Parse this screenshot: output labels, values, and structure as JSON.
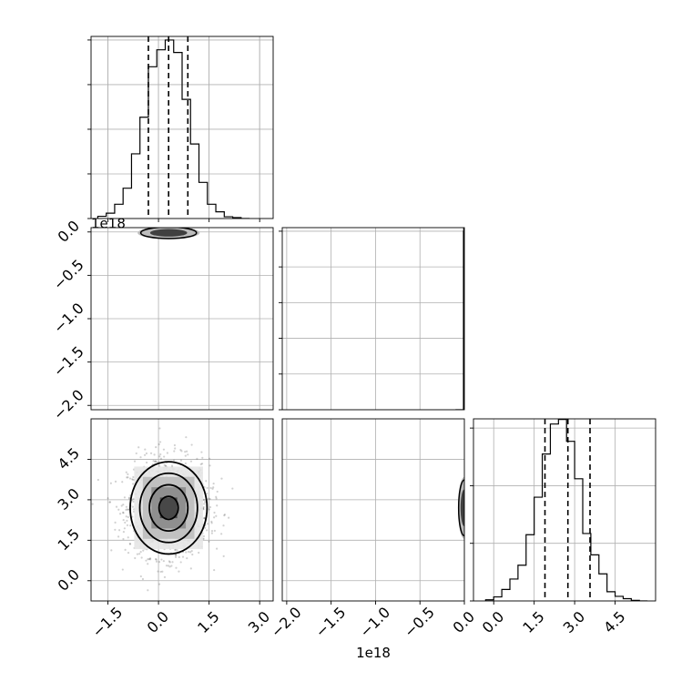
{
  "chart_data": {
    "type": "corner",
    "grid": true,
    "grid_color": "#b0b0b0",
    "panels": [
      {
        "id": "hist-param1",
        "type": "histogram",
        "row": 0,
        "col": 0,
        "xlim": [
          -2.0,
          3.4
        ],
        "x_ticks": [
          -1.5,
          0.0,
          1.5,
          3.0
        ],
        "y_ticks": [
          0,
          1,
          2,
          3,
          4
        ],
        "ymax": 4.08,
        "bin_edges": [
          -1.8,
          -1.55,
          -1.3,
          -1.05,
          -0.8,
          -0.55,
          -0.3,
          -0.05,
          0.2,
          0.45,
          0.7,
          0.95,
          1.2,
          1.45,
          1.7,
          1.95,
          2.2,
          2.45,
          2.7
        ],
        "counts": [
          0.05,
          0.12,
          0.32,
          0.68,
          1.45,
          2.27,
          3.4,
          3.78,
          4.0,
          3.72,
          2.67,
          1.67,
          0.81,
          0.32,
          0.15,
          0.04,
          0.02,
          0.0
        ],
        "quantiles": [
          -0.3,
          0.3,
          0.87
        ],
        "offset_text": "1e18"
      },
      {
        "id": "scatter-p2-vs-p1",
        "type": "density",
        "row": 1,
        "col": 0,
        "xlim": [
          -2.0,
          3.4
        ],
        "ylim": [
          -2.05,
          0.05
        ],
        "y_ticks": [
          0.0,
          -0.5,
          -1.0,
          -1.5,
          -2.0
        ],
        "y_tick_labels": [
          "0.0",
          "−0.5",
          "−1.0",
          "−1.5",
          "−2.0"
        ],
        "blob": {
          "x": 0.3,
          "y": -0.01
        }
      },
      {
        "id": "hist-param2",
        "type": "histogram",
        "row": 1,
        "col": 1,
        "xlim": [
          -2.05,
          0.0
        ],
        "y_ticks": [
          0,
          1,
          2,
          3,
          4,
          5
        ],
        "ymax": 5.1,
        "bin_edges": [
          -0.1,
          -0.01,
          0.0
        ],
        "counts": [
          0.0,
          5.0
        ],
        "quantiles": [
          -0.005
        ]
      },
      {
        "id": "scatter-p3-vs-p1",
        "type": "density",
        "row": 2,
        "col": 0,
        "xlim": [
          -2.0,
          3.4
        ],
        "ylim": [
          -0.75,
          6.0
        ],
        "x_ticks": [
          -1.5,
          0.0,
          1.5,
          3.0
        ],
        "x_tick_labels": [
          "−1.5",
          "0.0",
          "1.5",
          "3.0"
        ],
        "y_ticks": [
          0.0,
          1.5,
          3.0,
          4.5
        ],
        "y_tick_labels": [
          "0.0",
          "1.5",
          "3.0",
          "4.5"
        ],
        "center": {
          "x": 0.3,
          "y": 2.7
        },
        "sigma": {
          "x": 0.6,
          "y": 0.9
        },
        "contour_levels": [
          0.5,
          1.0,
          1.5,
          2.0
        ]
      },
      {
        "id": "scatter-p3-vs-p2",
        "type": "density",
        "row": 2,
        "col": 1,
        "xlim": [
          -2.05,
          0.0
        ],
        "ylim": [
          -0.75,
          6.0
        ],
        "x_ticks": [
          -2.0,
          -1.5,
          -1.0,
          -0.5,
          0.0
        ],
        "x_tick_labels": [
          "−2.0",
          "−1.5",
          "−1.0",
          "−0.5",
          "0.0"
        ],
        "blob": {
          "x": 0.0,
          "y": 2.7
        },
        "offset_text": "1e18"
      },
      {
        "id": "hist-param3",
        "type": "histogram",
        "row": 2,
        "col": 2,
        "xlim": [
          -0.75,
          6.0
        ],
        "x_ticks": [
          0.0,
          1.5,
          3.0,
          4.5
        ],
        "x_tick_labels": [
          "0.0",
          "1.5",
          "3.0",
          "4.5"
        ],
        "y_ticks": [
          0,
          1,
          2,
          3
        ],
        "ymax": 3.16,
        "bin_edges": [
          -0.3,
          0.0,
          0.3,
          0.6,
          0.9,
          1.2,
          1.5,
          1.8,
          2.1,
          2.4,
          2.7,
          3.0,
          3.3,
          3.6,
          3.9,
          4.2,
          4.5,
          4.8,
          5.1,
          5.4,
          5.7
        ],
        "counts": [
          0.02,
          0.07,
          0.2,
          0.38,
          0.62,
          1.15,
          1.8,
          2.55,
          3.07,
          3.15,
          2.77,
          2.12,
          1.17,
          0.8,
          0.47,
          0.16,
          0.08,
          0.04,
          0.01,
          0.0
        ],
        "quantiles": [
          1.9,
          2.75,
          3.57
        ]
      }
    ]
  }
}
